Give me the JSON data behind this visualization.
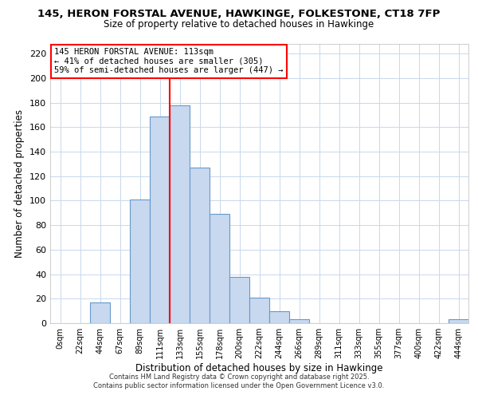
{
  "title_line1": "145, HERON FORSTAL AVENUE, HAWKINGE, FOLKESTONE, CT18 7FP",
  "title_line2": "Size of property relative to detached houses in Hawkinge",
  "xlabel": "Distribution of detached houses by size in Hawkinge",
  "ylabel": "Number of detached properties",
  "bar_labels": [
    "0sqm",
    "22sqm",
    "44sqm",
    "67sqm",
    "89sqm",
    "111sqm",
    "133sqm",
    "155sqm",
    "178sqm",
    "200sqm",
    "222sqm",
    "244sqm",
    "266sqm",
    "289sqm",
    "311sqm",
    "333sqm",
    "355sqm",
    "377sqm",
    "400sqm",
    "422sqm",
    "444sqm"
  ],
  "bar_heights": [
    0,
    0,
    17,
    0,
    101,
    169,
    178,
    127,
    89,
    38,
    21,
    10,
    3,
    0,
    0,
    0,
    0,
    0,
    0,
    0,
    3
  ],
  "bar_color": "#c8d8ee",
  "bar_edge_color": "#6699cc",
  "vline_x": 5.5,
  "vline_color": "red",
  "ylim": [
    0,
    228
  ],
  "yticks": [
    0,
    20,
    40,
    60,
    80,
    100,
    120,
    140,
    160,
    180,
    200,
    220
  ],
  "annotation_title": "145 HERON FORSTAL AVENUE: 113sqm",
  "annotation_line2": "← 41% of detached houses are smaller (305)",
  "annotation_line3": "59% of semi-detached houses are larger (447) →",
  "annotation_box_color": "white",
  "annotation_box_edge": "red",
  "footer_line1": "Contains HM Land Registry data © Crown copyright and database right 2025.",
  "footer_line2": "Contains public sector information licensed under the Open Government Licence v3.0.",
  "background_color": "#ffffff",
  "grid_color": "#c8d8ec"
}
